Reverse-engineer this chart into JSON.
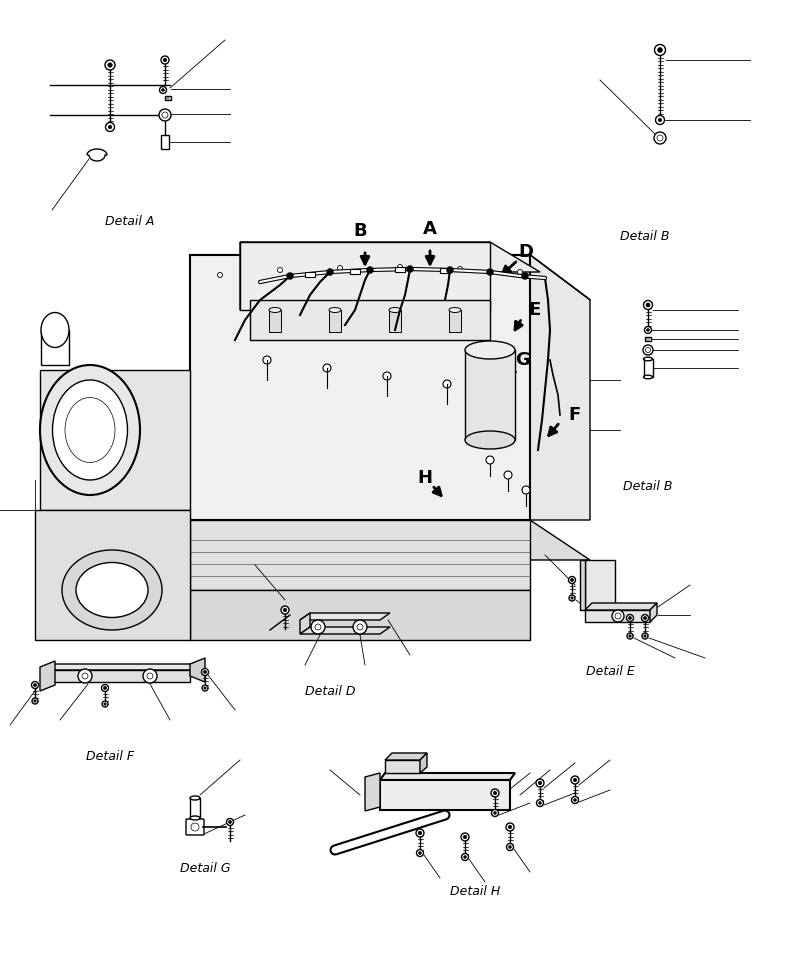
{
  "bg_color": "#ffffff",
  "detail_labels": {
    "A": "Detail A",
    "B1": "Detail B",
    "B2": "Detail B",
    "D": "Detail D",
    "E": "Detail E",
    "F": "Detail F",
    "G": "Detail G",
    "H": "Detail H"
  },
  "figsize": [
    7.92,
    9.68
  ],
  "dpi": 100,
  "line_color": "#000000",
  "label_fontsize": 9,
  "letter_fontsize": 12
}
